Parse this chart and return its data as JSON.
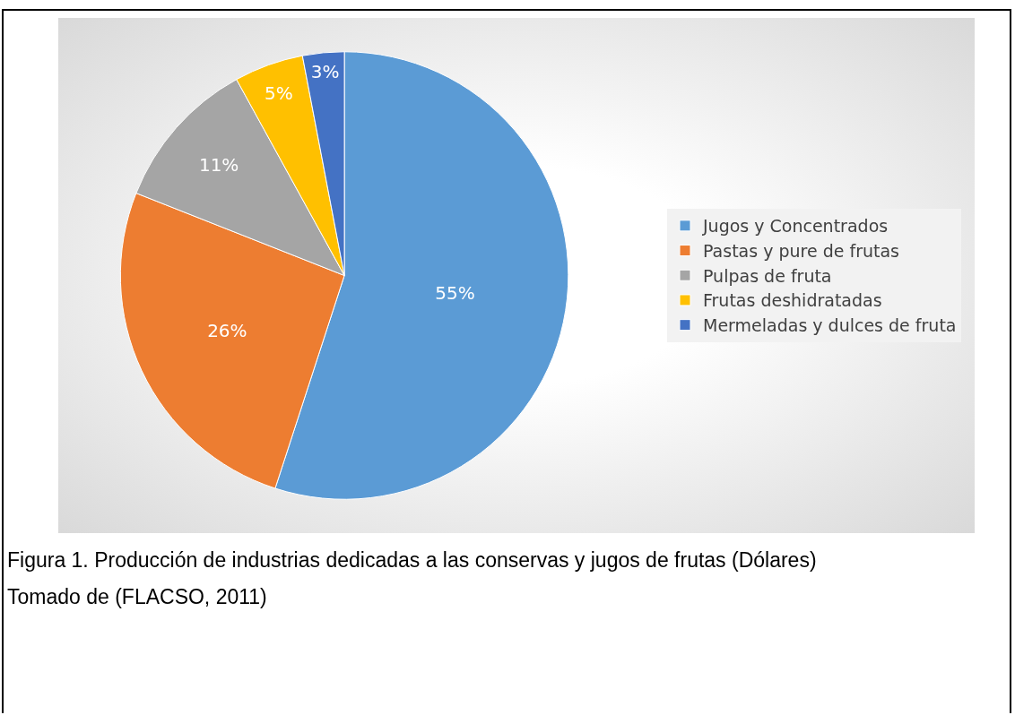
{
  "chart_data": {
    "type": "pie",
    "title": "Figura 1. Producción de industrias dedicadas a las conservas y jugos de frutas (Dólares)",
    "annotations": [
      "Tomado de (FLACSO, 2011)"
    ],
    "categories": [
      "Jugos y Concentrados",
      "Pastas y pure de frutas",
      "Pulpas de fruta",
      "Frutas deshidratadas",
      "Mermeladas y dulces de fruta"
    ],
    "values": [
      55,
      26,
      11,
      5,
      3
    ],
    "colors": [
      "#5b9bd5",
      "#ed7d31",
      "#a5a5a5",
      "#ffc000",
      "#4472c4"
    ],
    "value_labels": [
      "55%",
      "26%",
      "11%",
      "5%",
      "3%"
    ],
    "legend": "right"
  }
}
